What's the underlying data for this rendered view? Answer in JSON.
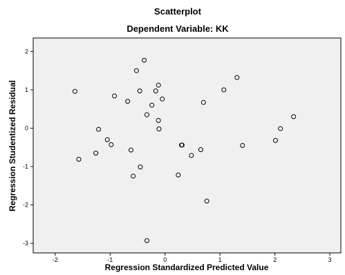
{
  "chart_data": {
    "type": "scatter",
    "title": "Scatterplot",
    "subtitle": "Dependent Variable: KK",
    "xlabel": "Regression Standardized Predicted Value",
    "ylabel": "Regression Studentized Residual",
    "xlim": [
      -2.4,
      3.2
    ],
    "ylim": [
      -3.25,
      2.35
    ],
    "xticks": [
      -2,
      -1,
      0,
      1,
      2,
      3
    ],
    "yticks": [
      -3,
      -2,
      -1,
      0,
      1,
      2
    ],
    "xtick_labels": [
      "-2",
      "-1",
      "0",
      "1",
      "2",
      "3"
    ],
    "ytick_labels": [
      "-3",
      "-2",
      "-1",
      "0",
      "1",
      "2"
    ],
    "grid": false,
    "plot_background": "#f0f0f0",
    "point_color": "#000000",
    "points": [
      {
        "x": -1.64,
        "y": 0.96
      },
      {
        "x": -1.57,
        "y": -0.81
      },
      {
        "x": -1.26,
        "y": -0.65
      },
      {
        "x": -1.21,
        "y": -0.03
      },
      {
        "x": -1.05,
        "y": -0.3
      },
      {
        "x": -0.98,
        "y": -0.43
      },
      {
        "x": -0.92,
        "y": 0.84
      },
      {
        "x": -0.68,
        "y": 0.7
      },
      {
        "x": -0.62,
        "y": -0.57
      },
      {
        "x": -0.58,
        "y": -1.25
      },
      {
        "x": -0.52,
        "y": 1.5
      },
      {
        "x": -0.46,
        "y": 0.97
      },
      {
        "x": -0.45,
        "y": -1.01
      },
      {
        "x": -0.38,
        "y": 1.77
      },
      {
        "x": -0.33,
        "y": 0.35
      },
      {
        "x": -0.33,
        "y": -2.93
      },
      {
        "x": -0.24,
        "y": 0.6
      },
      {
        "x": -0.17,
        "y": 0.97
      },
      {
        "x": -0.12,
        "y": 1.12
      },
      {
        "x": -0.12,
        "y": 0.2
      },
      {
        "x": -0.11,
        "y": -0.02
      },
      {
        "x": -0.05,
        "y": 0.76
      },
      {
        "x": 0.24,
        "y": -1.22
      },
      {
        "x": 0.3,
        "y": -0.44
      },
      {
        "x": 0.31,
        "y": -0.44
      },
      {
        "x": 0.48,
        "y": -0.71
      },
      {
        "x": 0.65,
        "y": -0.56
      },
      {
        "x": 0.7,
        "y": 0.67
      },
      {
        "x": 0.76,
        "y": -1.9
      },
      {
        "x": 1.07,
        "y": 1.0
      },
      {
        "x": 1.31,
        "y": 1.32
      },
      {
        "x": 1.41,
        "y": -0.45
      },
      {
        "x": 2.01,
        "y": -0.32
      },
      {
        "x": 2.1,
        "y": -0.01
      },
      {
        "x": 2.34,
        "y": 0.3
      }
    ]
  }
}
